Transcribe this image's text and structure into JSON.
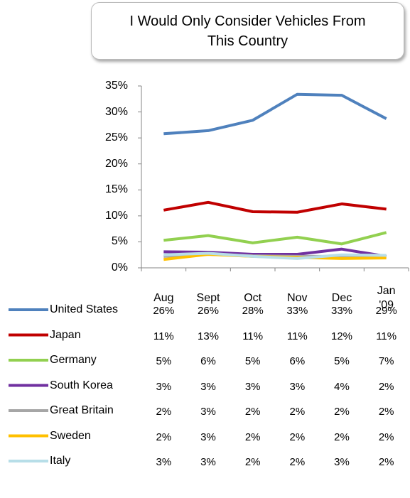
{
  "chart_data": {
    "type": "line",
    "title": "I Would Only Consider Vehicles From This Country",
    "categories": [
      "Aug",
      "Sept",
      "Oct",
      "Nov",
      "Dec",
      "Jan '09"
    ],
    "ylim": [
      0,
      35
    ],
    "yticks": [
      {
        "value": 0,
        "label": "0%"
      },
      {
        "value": 5,
        "label": "5%"
      },
      {
        "value": 10,
        "label": "10%"
      },
      {
        "value": 15,
        "label": "15%"
      },
      {
        "value": 20,
        "label": "20%"
      },
      {
        "value": 25,
        "label": "25%"
      },
      {
        "value": 30,
        "label": "30%"
      },
      {
        "value": 35,
        "label": "35%"
      }
    ],
    "series": [
      {
        "name": "United States",
        "color": "#4f81bd",
        "values": [
          25.8,
          26.4,
          28.4,
          33.4,
          33.2,
          28.7
        ],
        "value_labels": [
          "26%",
          "26%",
          "28%",
          "33%",
          "33%",
          "29%"
        ]
      },
      {
        "name": "Japan",
        "color": "#c00000",
        "values": [
          11.1,
          12.6,
          10.8,
          10.7,
          12.3,
          11.3
        ],
        "value_labels": [
          "11%",
          "13%",
          "11%",
          "11%",
          "12%",
          "11%"
        ]
      },
      {
        "name": "Germany",
        "color": "#92d050",
        "values": [
          5.3,
          6.2,
          4.8,
          5.9,
          4.6,
          6.8
        ],
        "value_labels": [
          "5%",
          "6%",
          "5%",
          "6%",
          "5%",
          "7%"
        ]
      },
      {
        "name": "South Korea",
        "color": "#7030a0",
        "values": [
          3.1,
          3.0,
          2.6,
          2.6,
          3.6,
          2.2
        ],
        "value_labels": [
          "3%",
          "3%",
          "3%",
          "3%",
          "4%",
          "2%"
        ]
      },
      {
        "name": "Great Britain",
        "color": "#a6a6a6",
        "values": [
          2.2,
          2.6,
          2.3,
          2.2,
          2.2,
          2.2
        ],
        "value_labels": [
          "2%",
          "3%",
          "2%",
          "2%",
          "2%",
          "2%"
        ]
      },
      {
        "name": "Sweden",
        "color": "#ffc000",
        "values": [
          1.6,
          2.6,
          2.2,
          2.0,
          1.8,
          1.9
        ],
        "value_labels": [
          "2%",
          "3%",
          "2%",
          "2%",
          "2%",
          "2%"
        ]
      },
      {
        "name": "Italy",
        "color": "#b7dee8",
        "values": [
          2.5,
          2.8,
          2.2,
          1.8,
          2.5,
          2.4
        ],
        "value_labels": [
          "3%",
          "3%",
          "2%",
          "2%",
          "3%",
          "2%"
        ]
      }
    ]
  }
}
